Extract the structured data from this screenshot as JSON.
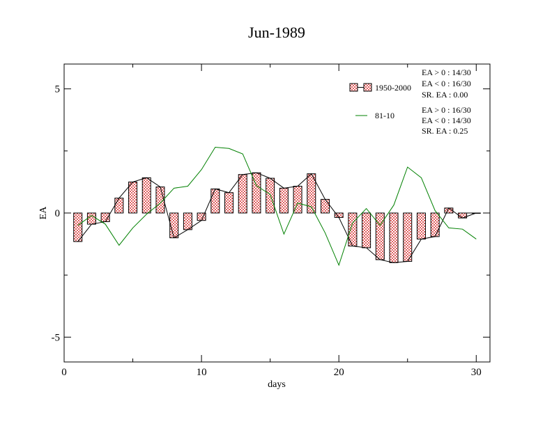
{
  "chart_data": {
    "type": "bar",
    "title": "Jun-1989",
    "xlabel": "days",
    "ylabel": "EA",
    "xlim": [
      0,
      31
    ],
    "ylim": [
      -6,
      6
    ],
    "x_ticks": [
      0,
      10,
      20,
      30
    ],
    "x_tick_labels": [
      "0",
      "10",
      "20",
      "30"
    ],
    "y_ticks": [
      -5,
      0,
      5
    ],
    "y_tick_labels": [
      "-5",
      "0",
      "5"
    ],
    "grid": false,
    "legend_position": "top-right",
    "x": [
      1,
      2,
      3,
      4,
      5,
      6,
      7,
      8,
      9,
      10,
      11,
      12,
      13,
      14,
      15,
      16,
      17,
      18,
      19,
      20,
      21,
      22,
      23,
      24,
      25,
      26,
      27,
      28,
      29,
      30
    ],
    "series": [
      {
        "name": "1950-2000",
        "kind": "bar-with-line",
        "color": "#e06060",
        "values": [
          -1.15,
          -0.45,
          -0.35,
          0.6,
          1.25,
          1.42,
          1.05,
          -1.0,
          -0.67,
          -0.3,
          0.97,
          0.82,
          1.55,
          1.62,
          1.4,
          1.0,
          1.08,
          1.58,
          0.55,
          -0.18,
          -1.33,
          -1.4,
          -1.88,
          -2.0,
          -1.95,
          -1.05,
          -0.95,
          0.2,
          -0.2,
          0.0
        ]
      },
      {
        "name": "81-10",
        "kind": "line",
        "color": "#008000",
        "values": [
          -0.5,
          -0.1,
          -0.45,
          -1.3,
          -0.6,
          -0.05,
          0.4,
          1.0,
          1.08,
          1.75,
          2.65,
          2.6,
          2.38,
          1.1,
          0.75,
          -0.85,
          0.4,
          0.25,
          -0.8,
          -2.1,
          -0.4,
          0.18,
          -0.5,
          0.32,
          1.85,
          1.42,
          0.1,
          -0.6,
          -0.65,
          -1.05
        ]
      }
    ],
    "annotations": [
      [
        "EA > 0 : 14/30",
        "EA < 0 : 16/30",
        "SR. EA :  0.00"
      ],
      [
        "EA > 0 : 16/30",
        "EA < 0 : 14/30",
        "SR. EA :  0.25"
      ]
    ]
  }
}
